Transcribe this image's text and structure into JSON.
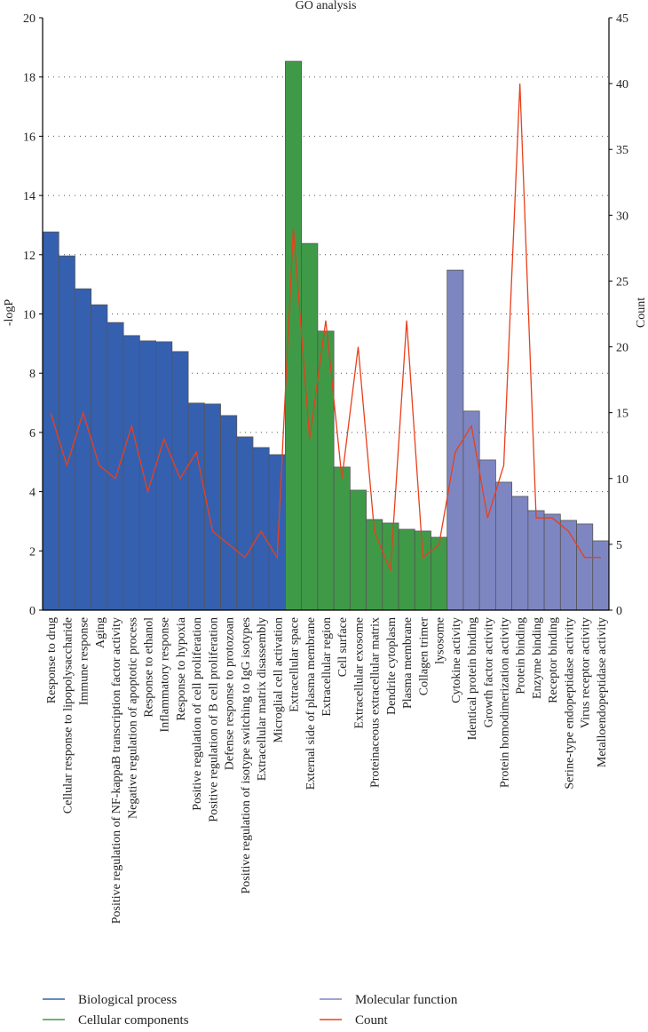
{
  "chart_data": {
    "type": "bar",
    "title": "GO analysis",
    "ylabel": "-logP",
    "y2label": "Count",
    "ylim": [
      0,
      20
    ],
    "y2lim": [
      0,
      45
    ],
    "yticks": [
      0,
      2,
      4,
      6,
      8,
      10,
      12,
      14,
      16,
      18,
      20
    ],
    "y2ticks": [
      0,
      5,
      10,
      15,
      20,
      25,
      30,
      35,
      40,
      45
    ],
    "grid": true,
    "legend_position": "bottom",
    "colors": {
      "Biological process": "#3560b0",
      "Cellular components": "#3f9a48",
      "Molecular function": "#7e86c2",
      "Count": "#e8401c"
    },
    "legend": [
      "Biological process",
      "Molecular function",
      "Cellular components",
      "Count"
    ],
    "categories": [
      "Response to drug",
      "Cellular response to lipopolysaccharide",
      "Immune response",
      "Aging",
      "Positive regulation of NF-kappaB transcription factor activity",
      "Negative regulation of apoptotic process",
      "Response to ethanol",
      "Inflammatory response",
      "Response to hypoxia",
      "Positive regulation of cell proliferation",
      "Positive regulation of B cell proliferation",
      "Defense response to protozoan",
      "Positive regulation of isotype switching to IgG isotypes",
      "Extracellular matrix disassembly",
      "Microglial cell activation",
      "Extracellular space",
      "External side of plasma membrane",
      "Extracellular region",
      "Cell surface",
      "Extracellular exosome",
      "Proteinaceous extracellular matrix",
      "Dendrite cytoplasm",
      "Plasma membrane",
      "Collagen trimer",
      "lysosome",
      "Cytokine activity",
      "Identical protein binding",
      "Growth factor activity",
      "Protein homodimerization activity",
      "Protein binding",
      "Enzyme binding",
      "Receptor binding",
      "Serine-type endopeptidase activity",
      "Virus receptor activity",
      "Metalloendopeptidase activity"
    ],
    "groups": [
      "Biological process",
      "Biological process",
      "Biological process",
      "Biological process",
      "Biological process",
      "Biological process",
      "Biological process",
      "Biological process",
      "Biological process",
      "Biological process",
      "Biological process",
      "Biological process",
      "Biological process",
      "Biological process",
      "Biological process",
      "Cellular components",
      "Cellular components",
      "Cellular components",
      "Cellular components",
      "Cellular components",
      "Cellular components",
      "Cellular components",
      "Cellular components",
      "Cellular components",
      "Cellular components",
      "Molecular function",
      "Molecular function",
      "Molecular function",
      "Molecular function",
      "Molecular function",
      "Molecular function",
      "Molecular function",
      "Molecular function",
      "Molecular function",
      "Molecular function"
    ],
    "series": [
      {
        "name": "-logP",
        "axis": "left",
        "kind": "bar",
        "values": [
          12.77,
          11.96,
          10.85,
          10.31,
          9.71,
          9.27,
          9.09,
          9.06,
          8.73,
          6.99,
          6.96,
          6.57,
          5.85,
          5.49,
          5.25,
          18.53,
          12.38,
          9.42,
          4.83,
          4.05,
          3.06,
          2.94,
          2.73,
          2.67,
          2.46,
          11.48,
          6.72,
          5.07,
          4.32,
          3.84,
          3.36,
          3.24,
          3.03,
          2.91,
          2.34
        ]
      },
      {
        "name": "Count",
        "axis": "right",
        "kind": "line",
        "values": [
          15,
          11,
          15,
          11,
          10,
          14,
          9,
          13,
          10,
          12,
          6,
          5,
          4,
          6,
          4,
          29,
          13,
          22,
          10,
          20,
          6,
          3,
          22,
          4,
          5,
          12,
          14,
          7,
          11,
          40,
          7,
          7,
          6,
          4,
          4
        ]
      }
    ]
  }
}
